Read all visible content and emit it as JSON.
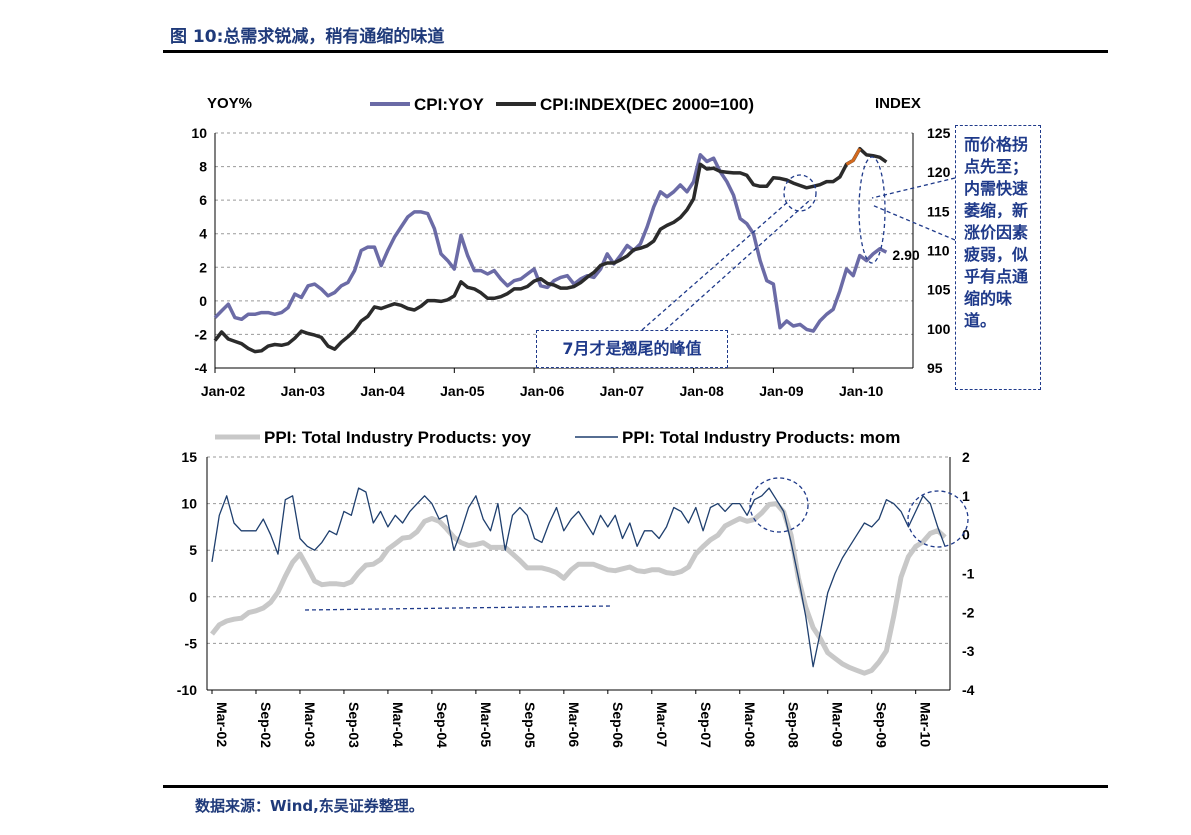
{
  "title": "图 10:总需求锐减，稍有通缩的味道",
  "source": "数据来源：Wind,东吴证券整理。",
  "colors": {
    "cpi_yoy": "#6b6ba6",
    "cpi_index": "#2b2b2b",
    "cpi_index_highlight": "#d2691e",
    "ppi_yoy": "#c8c8c8",
    "ppi_mom": "#1f3f6e",
    "annotation": "#1f3a8a",
    "grid": "#9a9a9a"
  },
  "annotations": {
    "peak": "7月才是翘尾的峰值",
    "deflation": "而价格拐点先至；内需快速萎缩，新涨价因素疲弱，似乎有点通缩的味道。",
    "last_cpi": "2.90"
  },
  "chart_data": [
    {
      "type": "line",
      "title": "",
      "ylabel": "YOY%",
      "y2label": "INDEX",
      "ylim": [
        -4,
        10
      ],
      "yticks": [
        -4,
        -2,
        0,
        2,
        4,
        6,
        8,
        10
      ],
      "y2lim": [
        95,
        125
      ],
      "y2ticks": [
        95,
        100,
        105,
        110,
        115,
        120,
        125
      ],
      "x_start": "2002-01",
      "xticks": [
        "Jan-02",
        "Jan-03",
        "Jan-04",
        "Jan-05",
        "Jan-06",
        "Jan-07",
        "Jan-08",
        "Jan-09",
        "Jan-10"
      ],
      "grid": true,
      "legend": "top",
      "series": [
        {
          "name": "CPI:YOY",
          "axis": "left",
          "values": [
            -1.0,
            -0.6,
            -0.2,
            -1.0,
            -1.1,
            -0.8,
            -0.8,
            -0.7,
            -0.7,
            -0.8,
            -0.7,
            -0.4,
            0.4,
            0.2,
            0.9,
            1.0,
            0.7,
            0.3,
            0.5,
            0.9,
            1.1,
            1.8,
            3.0,
            3.2,
            3.2,
            2.1,
            3.0,
            3.8,
            4.4,
            5.0,
            5.3,
            5.3,
            5.2,
            4.3,
            2.8,
            2.4,
            1.9,
            3.9,
            2.7,
            1.8,
            1.8,
            1.6,
            1.8,
            1.3,
            0.9,
            1.2,
            1.3,
            1.6,
            1.9,
            0.9,
            0.8,
            1.2,
            1.4,
            1.5,
            1.0,
            1.3,
            1.5,
            1.4,
            1.9,
            2.8,
            2.2,
            2.7,
            3.3,
            3.0,
            3.4,
            4.4,
            5.6,
            6.5,
            6.2,
            6.5,
            6.9,
            6.5,
            7.1,
            8.7,
            8.3,
            8.5,
            7.7,
            7.1,
            6.3,
            4.9,
            4.6,
            4.0,
            2.4,
            1.2,
            1.0,
            -1.6,
            -1.2,
            -1.5,
            -1.4,
            -1.7,
            -1.8,
            -1.2,
            -0.8,
            -0.5,
            0.6,
            1.9,
            1.5,
            2.7,
            2.4,
            2.8,
            3.1,
            2.9
          ],
          "last_label": "2.90"
        },
        {
          "name": "CPI:INDEX(DEC 2000=100)",
          "axis": "right",
          "values": [
            98.5,
            99.6,
            98.7,
            98.4,
            98.1,
            97.5,
            97.1,
            97.2,
            97.8,
            98.0,
            97.9,
            98.1,
            98.8,
            99.7,
            99.4,
            99.2,
            98.9,
            97.8,
            97.4,
            98.3,
            99.0,
            99.8,
            101.0,
            101.6,
            102.8,
            102.6,
            102.9,
            103.2,
            103.0,
            102.6,
            102.4,
            102.9,
            103.6,
            103.6,
            103.5,
            103.7,
            104.2,
            106.0,
            105.3,
            105.1,
            104.6,
            103.9,
            103.9,
            104.1,
            104.5,
            105.1,
            105.1,
            105.4,
            106.1,
            106.4,
            105.8,
            105.6,
            105.2,
            105.2,
            105.4,
            105.9,
            106.6,
            107.2,
            108.1,
            108.4,
            108.4,
            108.8,
            109.3,
            110.1,
            110.3,
            110.6,
            111.2,
            112.7,
            113.2,
            113.6,
            114.2,
            115.2,
            116.6,
            121.0,
            120.4,
            120.5,
            120.1,
            120.0,
            119.9,
            119.9,
            119.6,
            118.4,
            118.2,
            118.2,
            119.3,
            119.2,
            119.0,
            118.6,
            118.3,
            118.0,
            118.2,
            118.4,
            118.8,
            118.8,
            119.4,
            121.0,
            121.5,
            123.0,
            122.2,
            122.1,
            121.9,
            121.3
          ]
        }
      ]
    },
    {
      "type": "line",
      "title": "",
      "ylim": [
        -10,
        15
      ],
      "yticks": [
        -10,
        -5,
        0,
        5,
        10,
        15
      ],
      "y2lim": [
        -4,
        2
      ],
      "y2ticks": [
        -4,
        -3,
        -2,
        -1,
        0,
        1,
        2
      ],
      "x_start": "2002-03",
      "xticks": [
        "Mar-02",
        "Sep-02",
        "Mar-03",
        "Sep-03",
        "Mar-04",
        "Sep-04",
        "Mar-05",
        "Sep-05",
        "Mar-06",
        "Sep-06",
        "Mar-07",
        "Sep-07",
        "Mar-08",
        "Sep-08",
        "Mar-09",
        "Sep-09",
        "Mar-10"
      ],
      "grid": true,
      "legend": "top",
      "series": [
        {
          "name": "PPI: Total Industry Products: yoy",
          "axis": "left",
          "values": [
            -4.0,
            -3.0,
            -2.6,
            -2.4,
            -2.3,
            -1.7,
            -1.5,
            -1.2,
            -0.6,
            0.5,
            2.2,
            3.7,
            4.6,
            3.2,
            1.7,
            1.3,
            1.4,
            1.4,
            1.3,
            1.6,
            2.6,
            3.4,
            3.5,
            4.0,
            5.1,
            5.7,
            6.3,
            6.4,
            7.0,
            8.1,
            8.4,
            8.1,
            7.3,
            6.4,
            5.8,
            5.5,
            5.6,
            5.8,
            5.3,
            5.3,
            5.3,
            4.6,
            3.9,
            3.1,
            3.1,
            3.1,
            2.9,
            2.6,
            2.0,
            2.9,
            3.5,
            3.5,
            3.5,
            3.2,
            2.9,
            2.8,
            3.0,
            3.2,
            2.8,
            2.7,
            2.9,
            2.9,
            2.6,
            2.5,
            2.7,
            3.2,
            4.6,
            5.4,
            6.1,
            6.6,
            7.6,
            8.0,
            8.4,
            8.1,
            8.3,
            9.0,
            9.9,
            10.0,
            9.1,
            6.6,
            2.0,
            -1.1,
            -3.3,
            -4.5,
            -6.0,
            -6.6,
            -7.2,
            -7.6,
            -7.9,
            -8.2,
            -7.9,
            -7.0,
            -5.8,
            -2.1,
            2.1,
            4.3,
            5.4,
            5.9,
            6.8,
            7.1,
            6.4
          ]
        },
        {
          "name": "PPI: Total Industry Products: mom",
          "axis": "right",
          "values": [
            -0.7,
            0.5,
            1.0,
            0.3,
            0.1,
            0.1,
            0.1,
            0.4,
            0.0,
            -0.5,
            0.9,
            1.0,
            -0.1,
            -0.3,
            -0.4,
            -0.2,
            0.1,
            0.0,
            0.6,
            0.5,
            1.2,
            1.1,
            0.3,
            0.6,
            0.2,
            0.5,
            0.3,
            0.6,
            0.8,
            1.0,
            0.8,
            0.4,
            0.5,
            -0.4,
            0.1,
            0.7,
            1.0,
            0.4,
            0.1,
            0.8,
            -0.4,
            0.5,
            0.7,
            0.5,
            -0.1,
            -0.2,
            0.3,
            0.7,
            0.1,
            0.4,
            0.6,
            0.3,
            0.0,
            0.5,
            0.2,
            0.5,
            -0.1,
            0.3,
            -0.3,
            0.1,
            0.1,
            -0.1,
            0.2,
            0.7,
            0.6,
            0.3,
            0.7,
            0.1,
            0.7,
            0.8,
            0.6,
            0.8,
            0.8,
            0.5,
            0.9,
            1.0,
            1.2,
            0.9,
            0.6,
            -0.2,
            -1.1,
            -2.1,
            -3.4,
            -2.5,
            -1.5,
            -1.0,
            -0.6,
            -0.3,
            0.0,
            0.3,
            0.2,
            0.4,
            0.9,
            0.8,
            0.6,
            0.2,
            0.6,
            1.0,
            0.8,
            0.2,
            -0.3
          ]
        }
      ]
    }
  ]
}
